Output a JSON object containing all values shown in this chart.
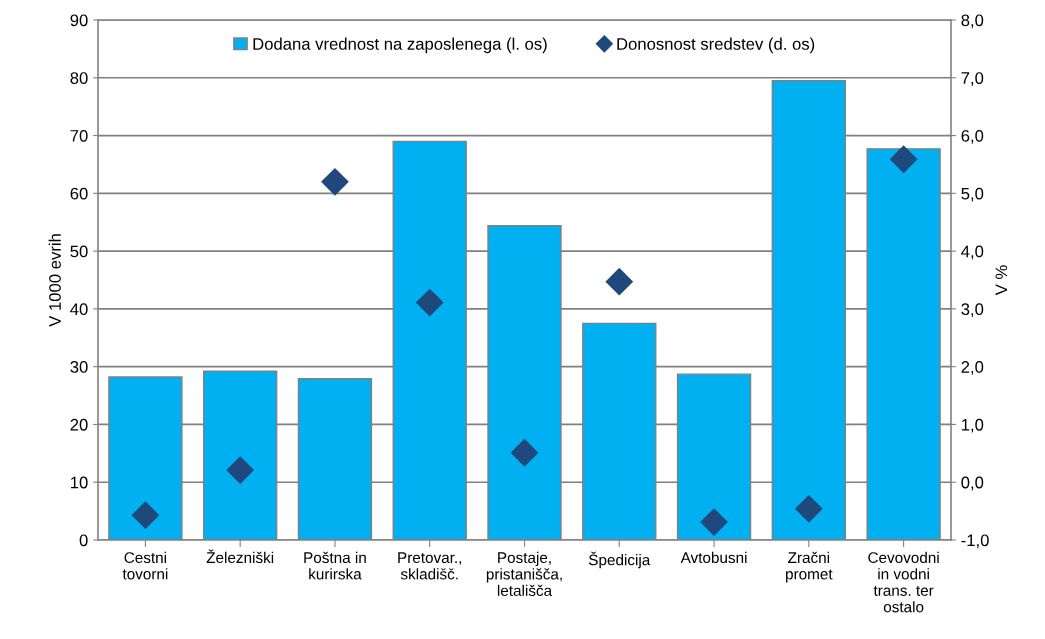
{
  "chart_data": {
    "type": "bar",
    "ylabel": "V 1000 evrih",
    "y2label": "V %",
    "categories": [
      "Cestni\ntovorni",
      "Železniški",
      "Poštna in\nkurirska",
      "Pretovar.,\nskladišč.",
      "Postaje,\npristanišča,\nletališča",
      "Špedicija",
      "Avtobusni",
      "Zračni\npromet",
      "Cevovodni\nin vodni\ntrans. ter\nostalo"
    ],
    "series": [
      {
        "name": "Dodana vrednost na zaposlenega (l. os)",
        "color": "#00b0f0",
        "values": [
          28.2,
          29.2,
          27.9,
          69.0,
          54.4,
          37.5,
          28.7,
          79.5,
          67.7
        ]
      },
      {
        "name": "Donosnost sredstev (d. os)",
        "color": "#1f497d",
        "type": "scatter",
        "axis": "y2",
        "marker": "diamond",
        "values": [
          -0.57,
          0.21,
          5.2,
          3.11,
          0.51,
          3.47,
          -0.69,
          -0.46,
          5.59
        ]
      }
    ],
    "ylim": [
      0,
      90
    ],
    "yticks": [
      0,
      10,
      20,
      30,
      40,
      50,
      60,
      70,
      80,
      90
    ],
    "y2lim": [
      -1,
      8
    ],
    "y2ticks": [
      {
        "value": -1,
        "label": "-1,0"
      },
      {
        "value": 0,
        "label": "0,0"
      },
      {
        "value": 1,
        "label": "1,0"
      },
      {
        "value": 2,
        "label": "2,0"
      },
      {
        "value": 3,
        "label": "3,0"
      },
      {
        "value": 4,
        "label": "4,0"
      },
      {
        "value": 5,
        "label": "5,0"
      },
      {
        "value": 6,
        "label": "6,0"
      },
      {
        "value": 7,
        "label": "7,0"
      },
      {
        "value": 8,
        "label": "8,0"
      }
    ],
    "grid": "y",
    "legend": "top"
  }
}
